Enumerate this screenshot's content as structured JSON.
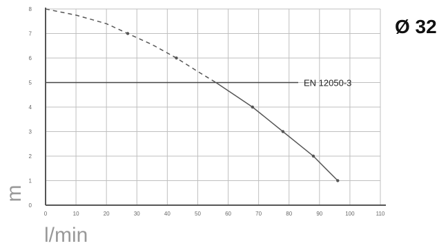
{
  "chart_data": {
    "type": "line",
    "title": "Ø 32",
    "xlabel": "l/min",
    "ylabel": "m",
    "xlim": [
      0,
      110
    ],
    "ylim": [
      0,
      8
    ],
    "x_ticks": [
      "0",
      "10",
      "20",
      "30",
      "40",
      "50",
      "60",
      "70",
      "80",
      "90",
      "100",
      "110"
    ],
    "y_ticks": [
      "0",
      "1",
      "2",
      "3",
      "4",
      "5",
      "6",
      "7",
      "8"
    ],
    "grid": true,
    "reference_line": {
      "y": 5,
      "label": "EN 12050-3"
    },
    "series": [
      {
        "style": "dashed",
        "x": [
          0,
          10,
          20,
          27,
          35,
          43,
          50,
          56
        ],
        "y": [
          8,
          7.75,
          7.4,
          7.0,
          6.55,
          6.0,
          5.45,
          5.0
        ]
      },
      {
        "style": "solid",
        "x": [
          56,
          62,
          68,
          74,
          78,
          83,
          88,
          92,
          96
        ],
        "y": [
          5.0,
          4.5,
          4.0,
          3.4,
          3.0,
          2.5,
          2.0,
          1.5,
          1.0
        ]
      }
    ],
    "markers": {
      "x": [
        27,
        43,
        68,
        78,
        88,
        96
      ],
      "y": [
        7.0,
        6.0,
        4.0,
        3.0,
        2.0,
        1.0
      ]
    },
    "colors": {
      "grid": "#bfbfbf",
      "axis": "#555555",
      "curve": "#555555",
      "reference": "#444444"
    }
  }
}
